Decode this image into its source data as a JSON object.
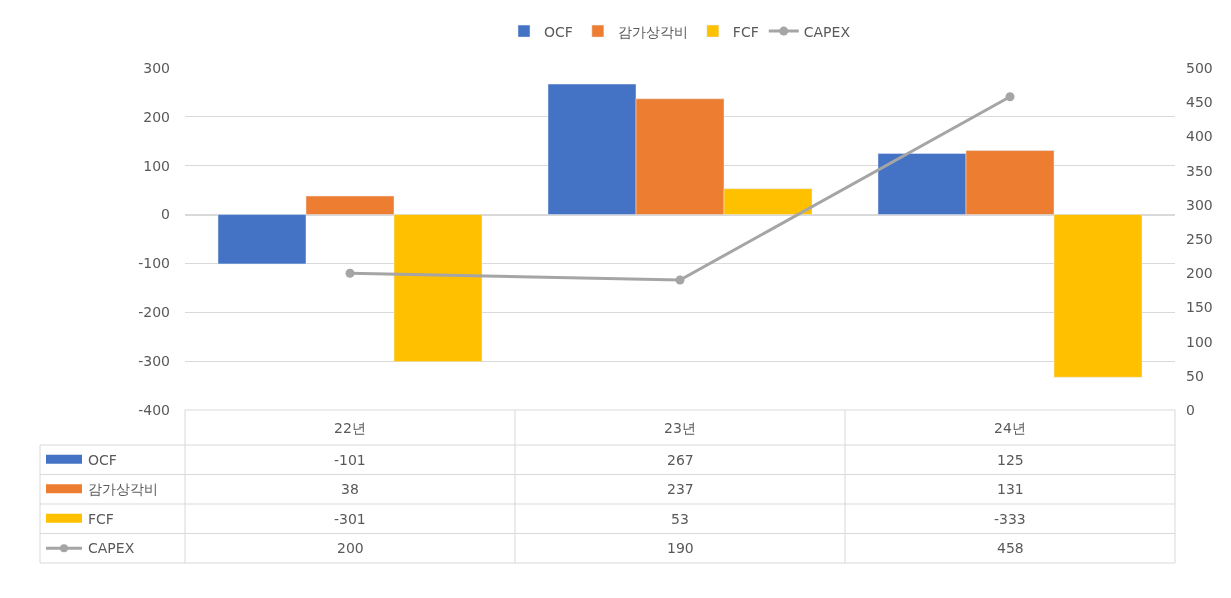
{
  "chart_data": {
    "type": "bar",
    "categories": [
      "22년",
      "23년",
      "24년"
    ],
    "series": [
      {
        "name": "OCF",
        "color": "#4472c4",
        "values": [
          -101,
          267,
          125
        ]
      },
      {
        "name": "감가상각비",
        "color": "#ed7d31",
        "values": [
          38,
          237,
          131
        ]
      },
      {
        "name": "FCF",
        "color": "#ffc000",
        "values": [
          -301,
          53,
          -333
        ]
      },
      {
        "name": "CAPEX",
        "color": "#a5a5a5",
        "type": "line",
        "axis": "y2",
        "marker": "circle",
        "values": [
          200,
          190,
          458
        ]
      }
    ],
    "ylim": [
      -400,
      300
    ],
    "yticks": [
      -400,
      -300,
      -200,
      -100,
      0,
      100,
      200,
      300
    ],
    "y2lim": [
      0,
      500
    ],
    "y2ticks": [
      0,
      50,
      100,
      150,
      200,
      250,
      300,
      350,
      400,
      450,
      500
    ],
    "grid": "y",
    "legend": "top",
    "data_labels": true
  }
}
